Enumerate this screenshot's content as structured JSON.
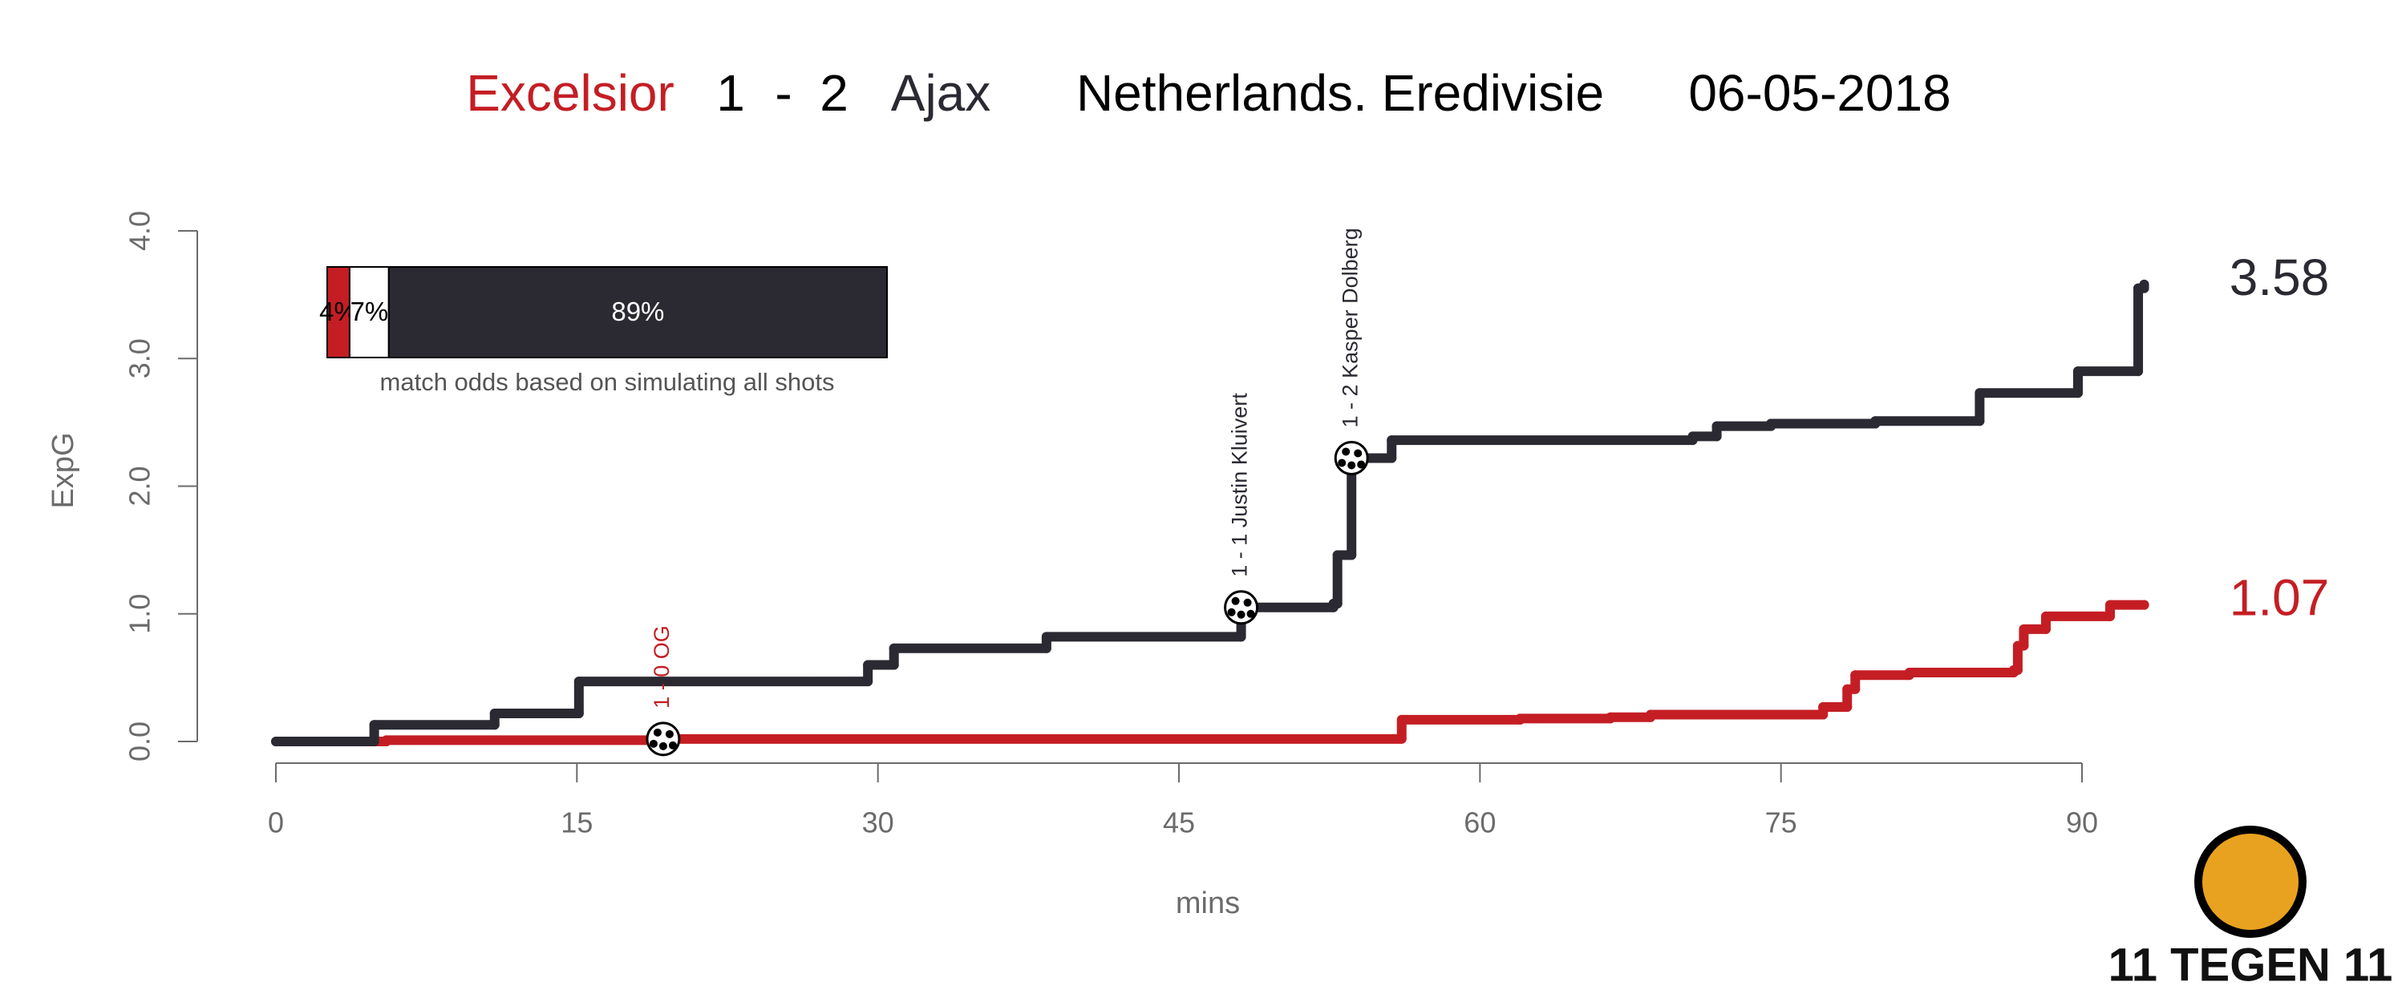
{
  "chart_data": {
    "type": "step-line",
    "score_home": 1,
    "score_separator": "-",
    "score_away": 2,
    "competition": "Netherlands. Eredivisie",
    "date": "06-05-2018",
    "x_label": "mins",
    "y_label": "ExpG",
    "xlim": [
      0,
      90
    ],
    "ylim": [
      0,
      4
    ],
    "xticks": [
      0,
      15,
      30,
      45,
      60,
      75,
      90
    ],
    "yticks": [
      {
        "value": 0,
        "label": "0.0"
      },
      {
        "value": 1,
        "label": "1.0"
      },
      {
        "value": 2,
        "label": "2.0"
      },
      {
        "value": 3,
        "label": "3.0"
      },
      {
        "value": 4,
        "label": "4.0"
      }
    ],
    "series": [
      {
        "name": "Excelsior",
        "color": "#c41e24",
        "x": [
          0,
          5.5,
          19.3,
          56.1,
          62.0,
          66.5,
          68.5,
          77.1,
          78.3,
          78.7,
          81.4,
          86.6,
          86.8,
          87.1,
          88.2,
          91.4,
          93.1
        ],
        "values": [
          0,
          0.01,
          0.02,
          0.17,
          0.18,
          0.19,
          0.21,
          0.27,
          0.41,
          0.52,
          0.54,
          0.56,
          0.75,
          0.88,
          0.98,
          1.07,
          1.07
        ]
      },
      {
        "name": "Ajax",
        "color": "#2b2a33",
        "x": [
          0,
          4.9,
          10.9,
          15.1,
          29.5,
          30.8,
          38.4,
          48.1,
          52.7,
          52.9,
          53.6,
          55.6,
          70.6,
          71.8,
          74.5,
          79.7,
          84.9,
          89.8,
          92.8,
          93.1
        ],
        "values": [
          0,
          0.13,
          0.22,
          0.47,
          0.6,
          0.73,
          0.82,
          1.05,
          1.08,
          1.46,
          2.22,
          2.36,
          2.39,
          2.47,
          2.49,
          2.51,
          2.73,
          2.9,
          3.55,
          3.58
        ]
      }
    ],
    "annotations": [
      {
        "text": "1 - 0 OG",
        "x": 19.3,
        "y": 0.02,
        "color": "#c41e24"
      },
      {
        "text": "1 - 1 Justin Kluivert",
        "x": 48.1,
        "y": 1.05,
        "color": "#2b2a33"
      },
      {
        "text": "1 - 2 Kasper Dolberg",
        "x": 53.6,
        "y": 2.22,
        "color": "#2b2a33"
      }
    ],
    "odds": {
      "caption": "match odds based on simulating all shots",
      "values": [
        4,
        7,
        89
      ],
      "value_labels": [
        "4%",
        "7%",
        "89%"
      ],
      "colors": [
        "#c41e24",
        "#ffffff",
        "#2b2a33"
      ],
      "label_colors": [
        "#000000",
        "#000000",
        "#ffffff"
      ]
    },
    "logo_text": "11 TEGEN 11"
  }
}
